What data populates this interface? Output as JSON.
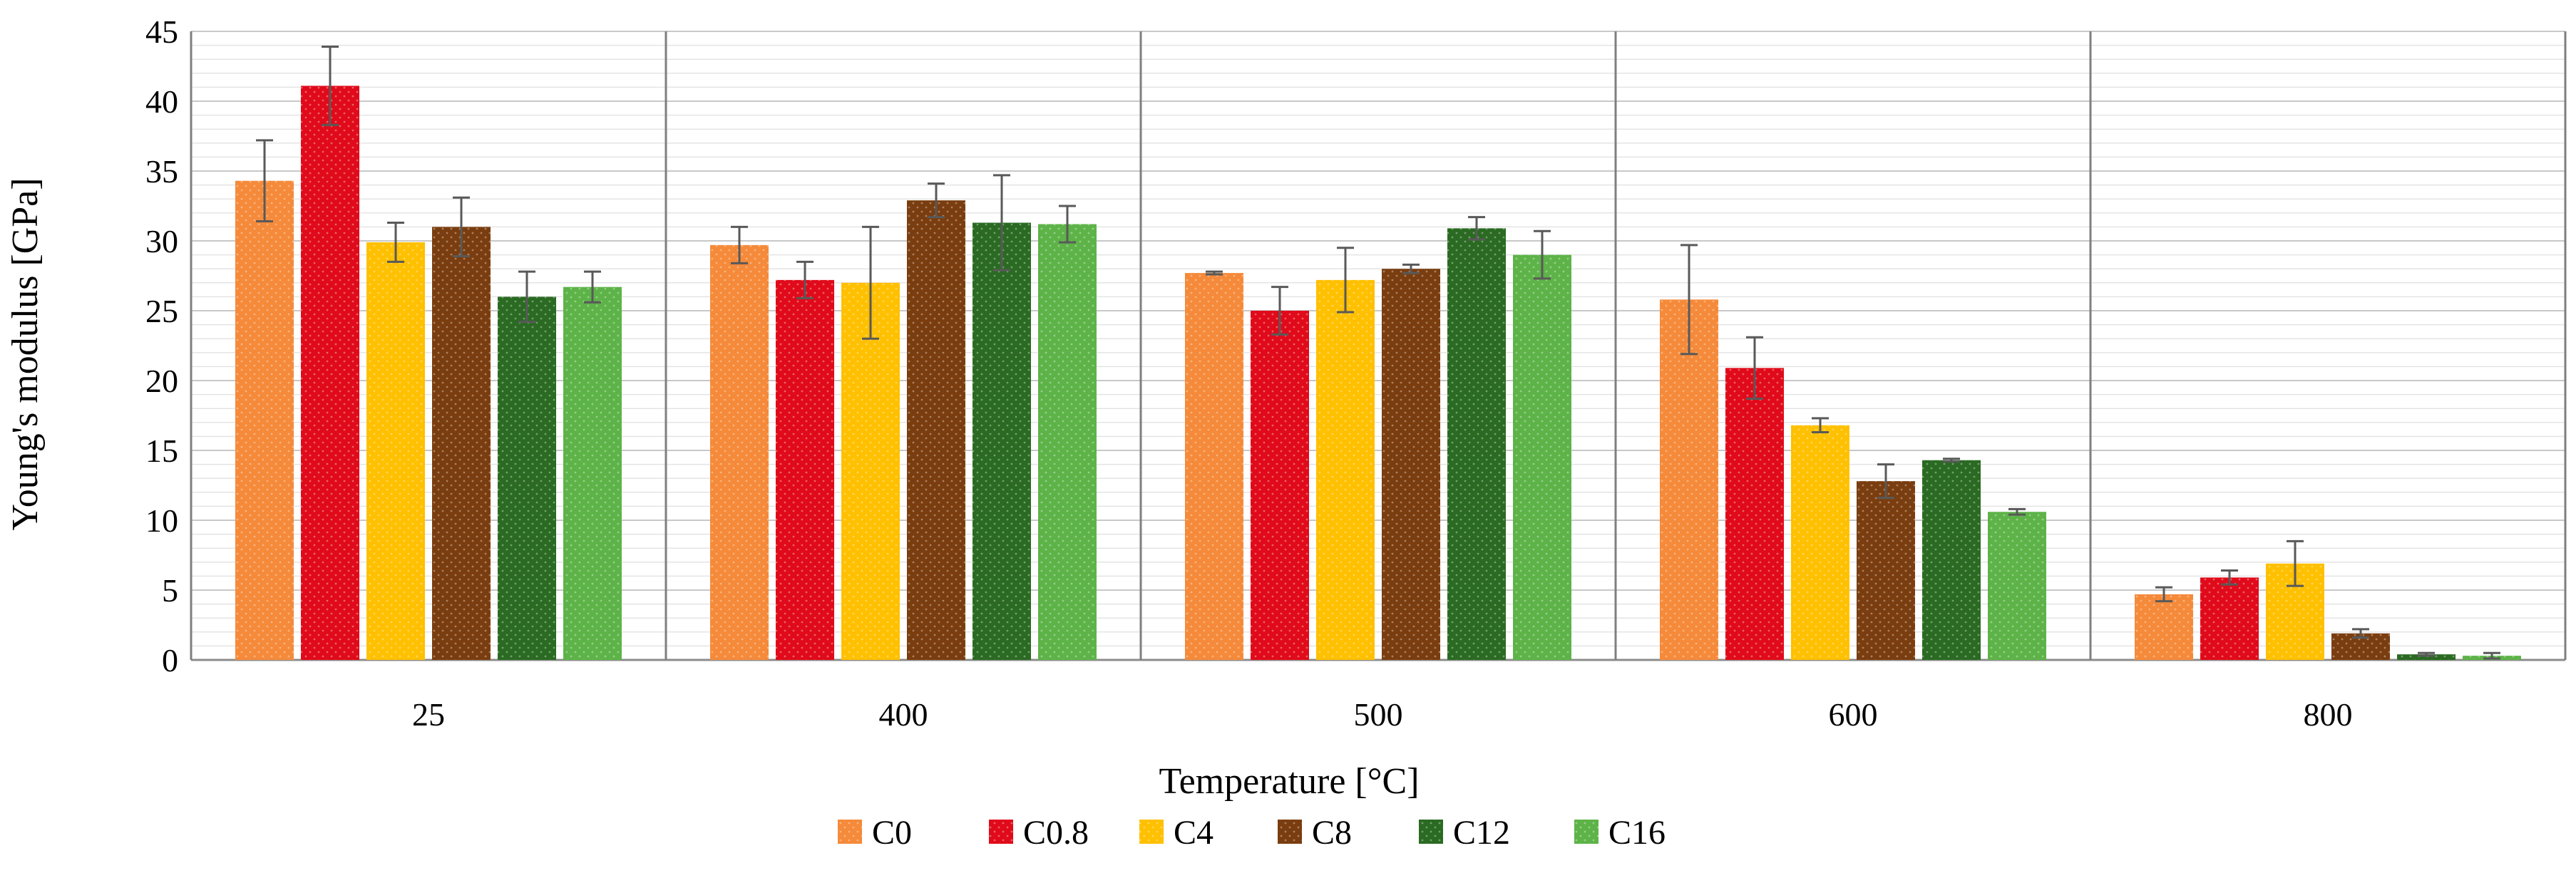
{
  "chart_data": {
    "type": "bar",
    "xlabel": "Temperature [°C]",
    "ylabel": "Young's modulus [GPa]",
    "ylim": [
      0,
      45
    ],
    "yticks": [
      0,
      5,
      10,
      15,
      20,
      25,
      30,
      35,
      40,
      45
    ],
    "categories": [
      "25",
      "400",
      "500",
      "600",
      "800"
    ],
    "legend_position": "bottom",
    "grid": true,
    "error_bars": true,
    "series": [
      {
        "name": "C0",
        "color": "#F58A3A",
        "values": [
          34.3,
          29.7,
          27.7,
          25.8,
          4.7
        ],
        "errors": [
          2.9,
          1.3,
          0.1,
          3.9,
          0.5
        ]
      },
      {
        "name": "C0.8",
        "color": "#E00A1A",
        "values": [
          41.1,
          27.2,
          25.0,
          20.9,
          5.9
        ],
        "errors": [
          2.8,
          1.3,
          1.7,
          2.2,
          0.5
        ]
      },
      {
        "name": "C4",
        "color": "#FFC000",
        "values": [
          29.9,
          27.0,
          27.2,
          16.8,
          6.9
        ],
        "errors": [
          1.4,
          4.0,
          2.3,
          0.5,
          1.6
        ]
      },
      {
        "name": "C8",
        "color": "#7A3D0F",
        "values": [
          31.0,
          32.9,
          28.0,
          12.8,
          1.9
        ],
        "errors": [
          2.1,
          1.2,
          0.3,
          1.2,
          0.3
        ]
      },
      {
        "name": "C12",
        "color": "#2A6A22",
        "values": [
          26.0,
          31.3,
          30.9,
          14.3,
          0.4
        ],
        "errors": [
          1.8,
          3.4,
          0.8,
          0.1,
          0.1
        ]
      },
      {
        "name": "C16",
        "color": "#5DB348",
        "values": [
          26.7,
          31.2,
          29.0,
          10.6,
          0.3
        ],
        "errors": [
          1.1,
          1.3,
          1.7,
          0.2,
          0.2
        ]
      }
    ]
  }
}
